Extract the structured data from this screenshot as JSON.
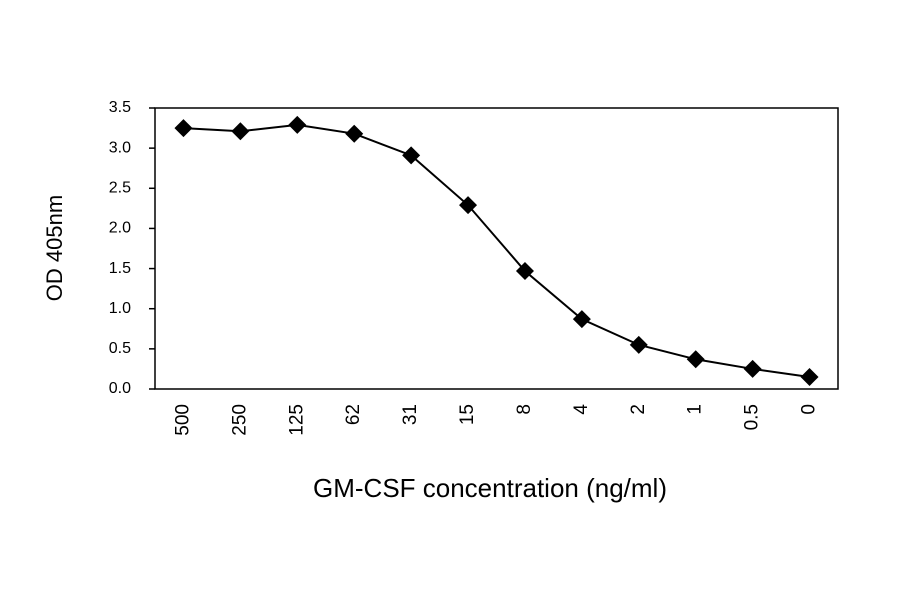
{
  "chart_data": {
    "type": "line",
    "x_label": "GM-CSF concentration (ng/ml)",
    "y_label": "OD 405nm",
    "categories": [
      "500",
      "250",
      "125",
      "62",
      "31",
      "15",
      "8",
      "4",
      "2",
      "1",
      "0.5",
      "0"
    ],
    "values": [
      3.25,
      3.21,
      3.29,
      3.18,
      2.91,
      2.29,
      1.47,
      0.87,
      0.55,
      0.37,
      0.25,
      0.15
    ],
    "color": "#000000",
    "ylim": [
      0,
      3.5
    ],
    "yticks": [
      {
        "value": 0,
        "label": "0.0"
      },
      0.5,
      {
        "value": 1,
        "label": "1.0"
      },
      1.5,
      {
        "value": 2,
        "label": "2.0"
      },
      2.5,
      {
        "value": 3,
        "label": "3.0"
      },
      3.5
    ],
    "grid": false
  }
}
